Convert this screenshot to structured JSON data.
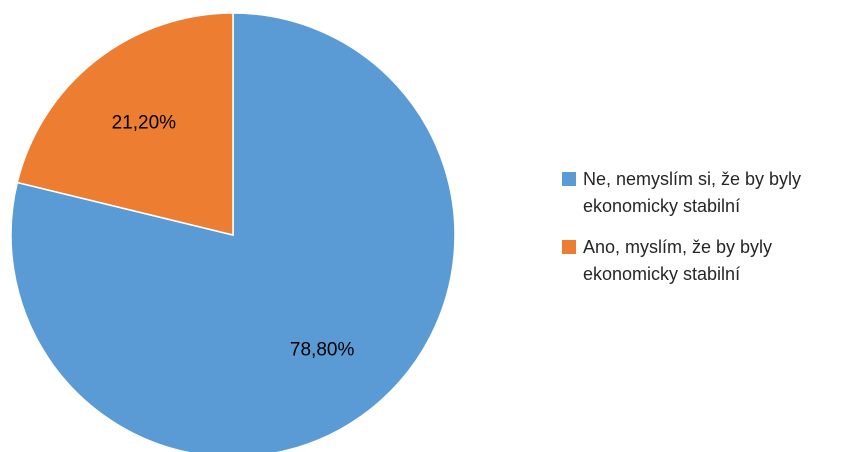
{
  "chart_data": {
    "type": "pie",
    "title": "",
    "series": [
      {
        "values": [
          78.8,
          21.2
        ],
        "labels": [
          "78,80%",
          "21,20%"
        ]
      }
    ],
    "categories": [
      "Ne, nemyslím si, že by byly ekonomicky stabilní",
      "Ano, myslím, že by byly ekonomicky stabilní"
    ],
    "colors": [
      "#5b9bd5",
      "#ed7d31"
    ],
    "start": "top, clockwise",
    "legend_position": "right"
  }
}
